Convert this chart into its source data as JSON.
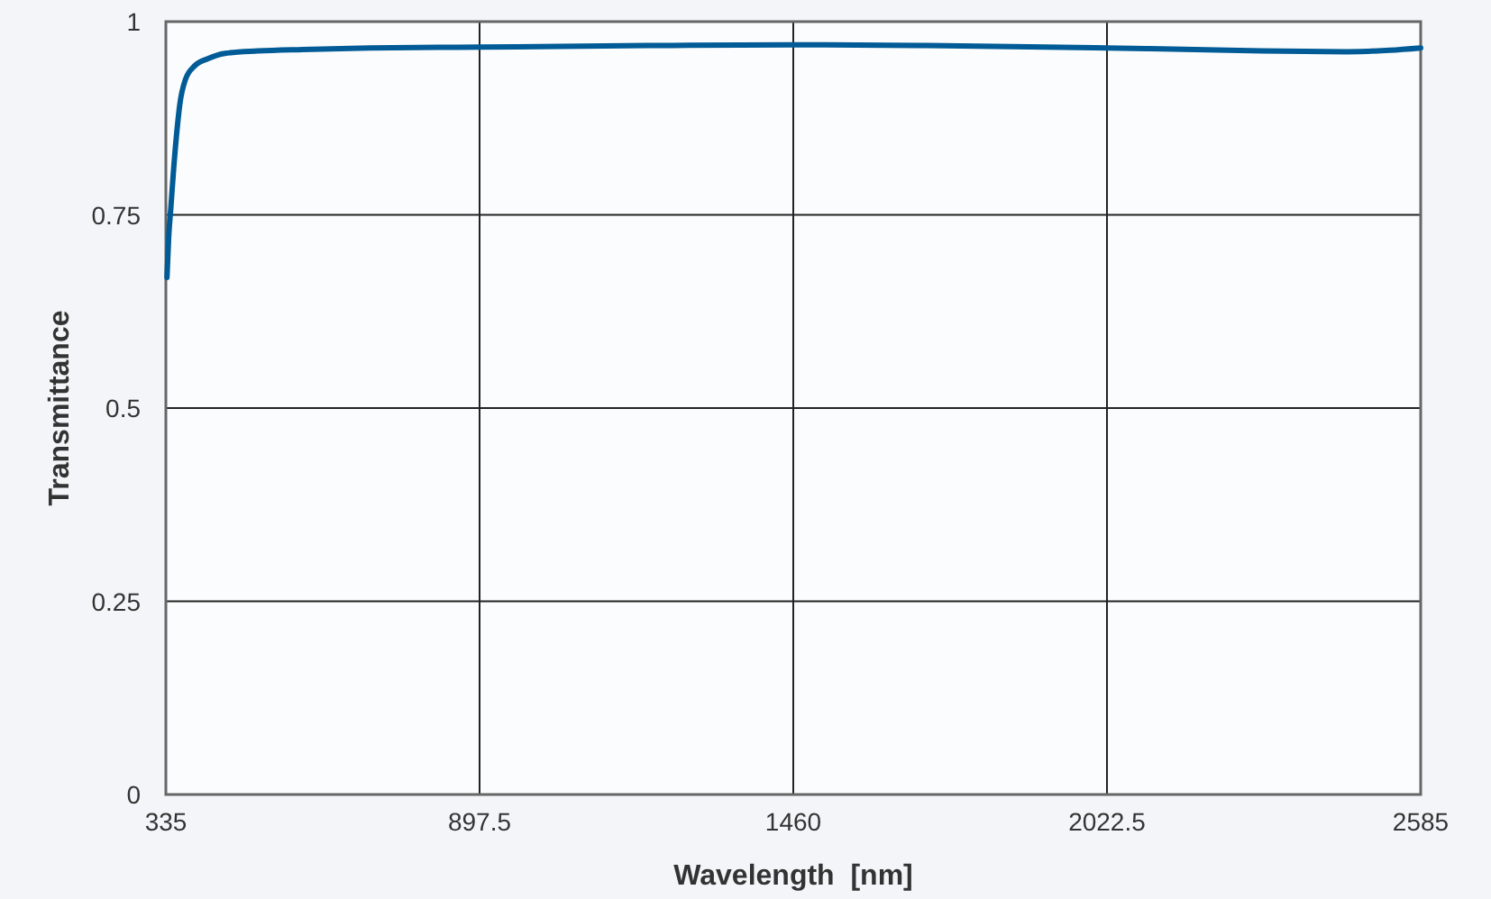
{
  "chart_data": {
    "type": "line",
    "xlabel": "Wavelength  [nm]",
    "ylabel": "Transmittance",
    "x": [
      337,
      340,
      344,
      349,
      355,
      360,
      370,
      387,
      410,
      441,
      500,
      580,
      700,
      900,
      1200,
      1460,
      1700,
      1913,
      2100,
      2300,
      2453,
      2530,
      2585
    ],
    "series": [
      {
        "color": "#005b96",
        "values": [
          0.669,
          0.72,
          0.76,
          0.81,
          0.86,
          0.893,
          0.925,
          0.943,
          0.952,
          0.959,
          0.962,
          0.964,
          0.966,
          0.967,
          0.969,
          0.97,
          0.969,
          0.967,
          0.965,
          0.962,
          0.961,
          0.963,
          0.966
        ]
      }
    ],
    "xlim": [
      335,
      2585
    ],
    "xticks": [
      335,
      897.5,
      1460,
      2022.5,
      2585
    ],
    "ylim": [
      0,
      1
    ],
    "yticks": [
      0,
      0.25,
      0.5,
      0.75,
      1
    ],
    "grid": true,
    "line_style": "solid",
    "marker": "none"
  }
}
